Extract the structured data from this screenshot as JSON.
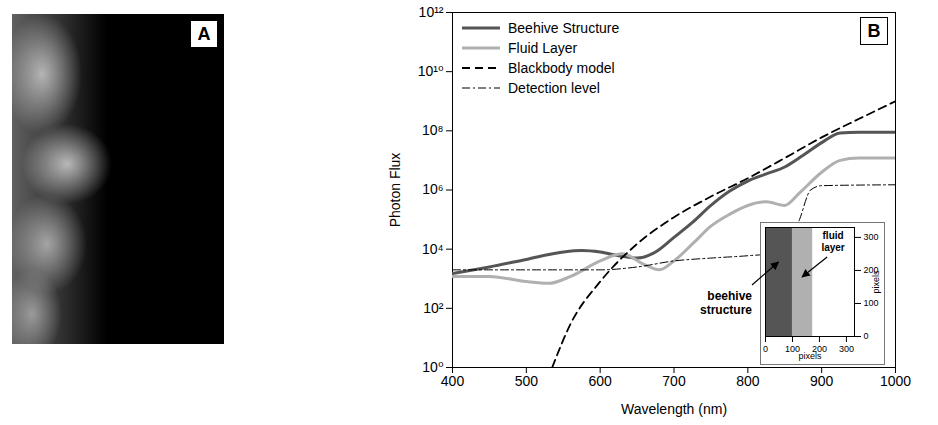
{
  "chart_data": [
    {
      "type": "image",
      "title": "A"
    },
    {
      "type": "line",
      "title": "B",
      "xlabel": "Wavelength (nm)",
      "ylabel": "Photon Flux",
      "log": "y",
      "grid": false,
      "legend": "top-left",
      "xlim": [
        400,
        1000
      ],
      "xticks": [
        400,
        500,
        600,
        700,
        800,
        900,
        1000
      ],
      "ylim": [
        1,
        1000000000000
      ],
      "yticks": [
        {
          "value": 1,
          "label": "10⁰"
        },
        {
          "value": 100,
          "label": "10²"
        },
        {
          "value": 10000,
          "label": "10⁴"
        },
        {
          "value": 1000000,
          "label": "10⁶"
        },
        {
          "value": 100000000,
          "label": "10⁸"
        },
        {
          "value": 10000000000,
          "label": "10¹⁰"
        },
        {
          "value": 1000000000000,
          "label": "10¹²"
        }
      ],
      "series": [
        {
          "name": "Beehive Structure",
          "color": "#555555",
          "line_style": "solid",
          "x": [
            400,
            450,
            500,
            550,
            575,
            600,
            625,
            650,
            675,
            700,
            725,
            750,
            775,
            800,
            825,
            850,
            875,
            900,
            925,
            950,
            1000
          ],
          "values": [
            1500,
            2500,
            4500,
            8000,
            9000,
            8000,
            6000,
            5000,
            8000,
            25000,
            80000,
            300000,
            900000,
            2000000,
            3500000,
            6000000,
            15000000,
            40000000,
            85000000,
            90000000,
            90000000
          ]
        },
        {
          "name": "Fluid Layer",
          "color": "#b0b0b0",
          "line_style": "solid",
          "x": [
            400,
            450,
            500,
            530,
            560,
            600,
            630,
            660,
            680,
            700,
            725,
            750,
            775,
            800,
            825,
            850,
            870,
            900,
            925,
            950,
            1000
          ],
          "values": [
            1200,
            1200,
            800,
            700,
            1200,
            4000,
            7000,
            3000,
            2000,
            4000,
            15000,
            60000,
            150000,
            300000,
            400000,
            300000,
            800000,
            4000000,
            10000000,
            12000000,
            12000000
          ]
        },
        {
          "name": "Blackbody model",
          "color": "#000000",
          "line_style": "dashed",
          "x": [
            535,
            560,
            600,
            650,
            700,
            750,
            800,
            850,
            900,
            950,
            1000
          ],
          "values": [
            1,
            30,
            800,
            15000,
            120000,
            600000,
            2500000,
            12000000,
            60000000,
            250000000,
            1000000000
          ]
        },
        {
          "name": "Detection level",
          "color": "#000000",
          "line_style": "dashdot",
          "x": [
            400,
            500,
            600,
            650,
            700,
            750,
            800,
            850,
            870,
            885,
            900,
            1000
          ],
          "values": [
            2000,
            2000,
            2000,
            2500,
            4000,
            5000,
            6000,
            8000,
            100000,
            1000000,
            1400000,
            1500000
          ]
        }
      ]
    },
    {
      "type": "image",
      "xlabel": "pixels",
      "ylabel": "pixels",
      "xlim": [
        0,
        330
      ],
      "ylim": [
        0,
        330
      ],
      "xticks": [
        0,
        100,
        200,
        300
      ],
      "yticks": [
        0,
        100,
        200,
        300
      ],
      "regions": [
        {
          "name": "beehive structure",
          "color": "#555555",
          "x": [
            0,
            100
          ]
        },
        {
          "name": "fluid layer",
          "color": "#b0b0b0",
          "x": [
            100,
            175
          ]
        }
      ]
    }
  ]
}
